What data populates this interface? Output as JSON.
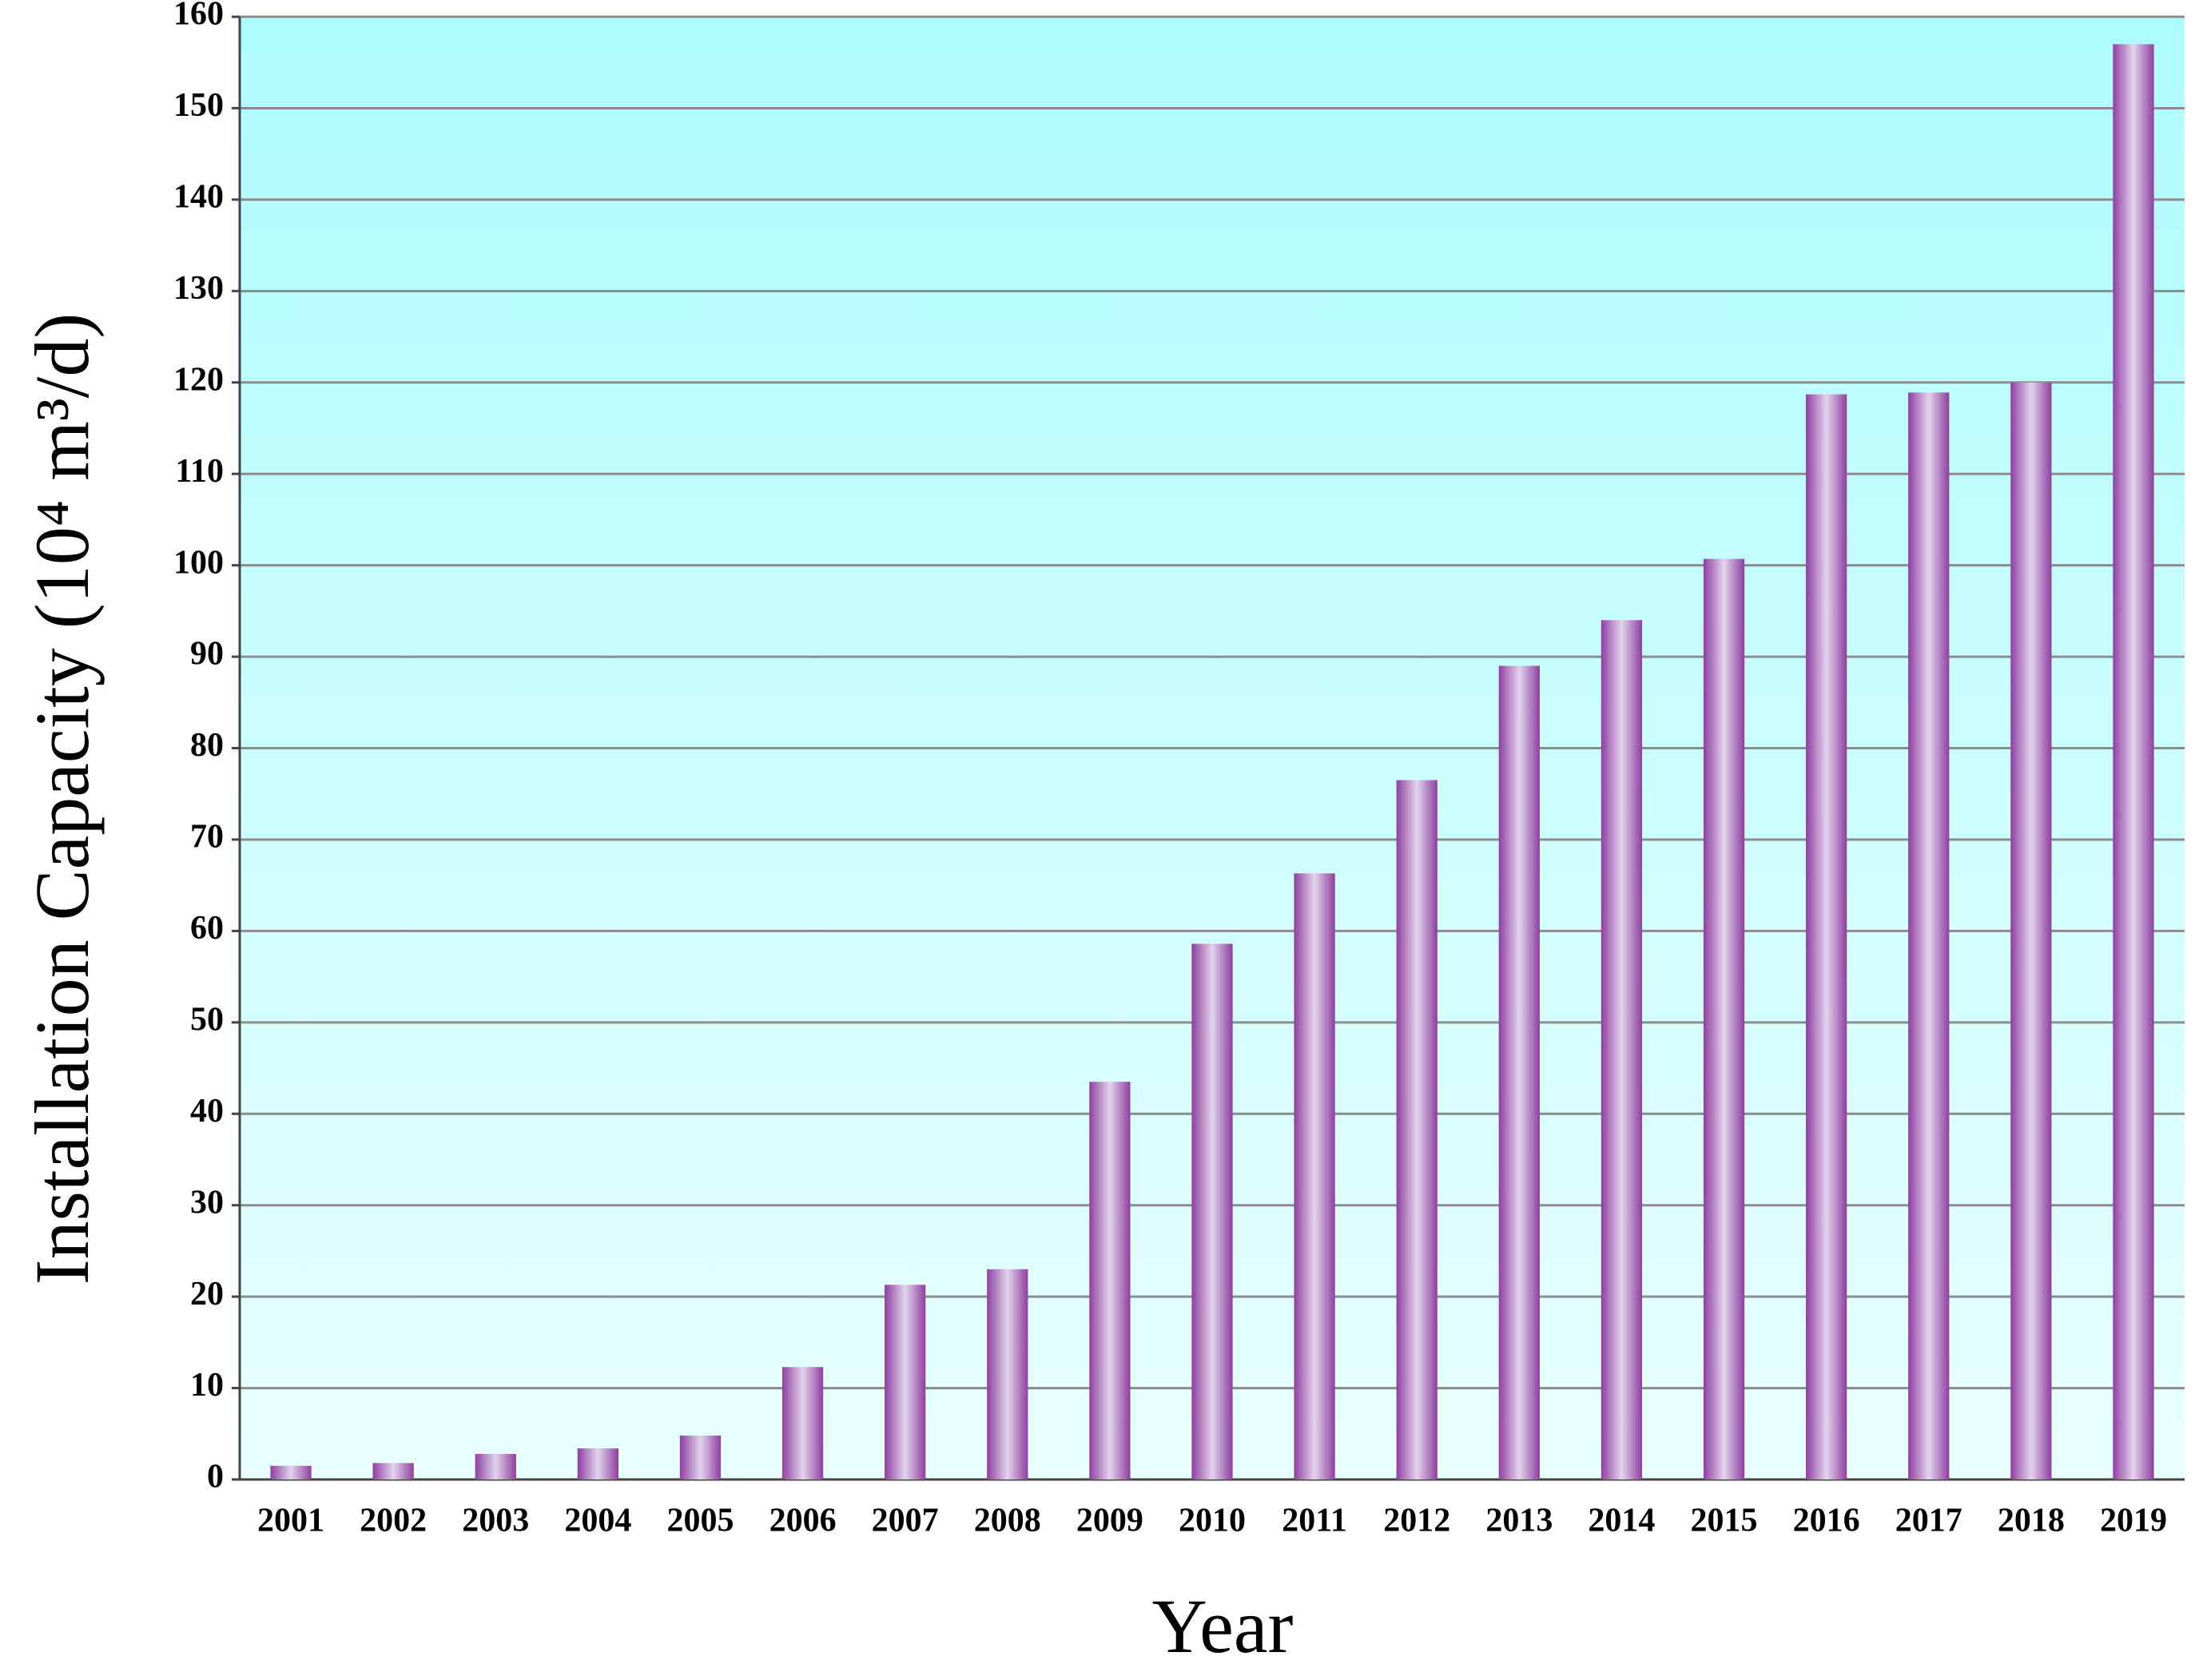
{
  "chart_data": {
    "type": "bar",
    "x_label": "Year",
    "y_label": "Installation Capacity (10⁴ m³/d)",
    "categories": [
      "2001",
      "2002",
      "2003",
      "2004",
      "2005",
      "2006",
      "2007",
      "2008",
      "2009",
      "2010",
      "2011",
      "2012",
      "2013",
      "2014",
      "2015",
      "2016",
      "2017",
      "2018",
      "2019"
    ],
    "values": [
      1.5,
      1.8,
      2.8,
      3.4,
      4.8,
      12.3,
      21.3,
      23,
      43.5,
      58.6,
      66.3,
      76.5,
      89,
      94,
      100.7,
      118.7,
      118.9,
      120,
      157
    ],
    "color": "#8e3fa0",
    "ylim": [
      0,
      160
    ],
    "yticks": [
      0,
      10,
      20,
      30,
      40,
      50,
      60,
      70,
      80,
      90,
      100,
      110,
      120,
      130,
      140,
      150,
      160
    ],
    "grid": true
  }
}
